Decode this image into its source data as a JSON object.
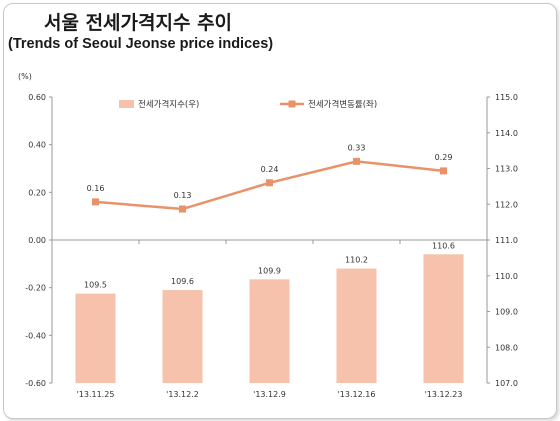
{
  "chart_data": {
    "type": "bar+line",
    "title": "서울 전세가격지수 추이",
    "subtitle": "(Trends of Seoul Jeonse price indices)",
    "left_axis_unit": "(%)",
    "categories": [
      "'13.11.25",
      "'13.12.2",
      "'13.12.9",
      "'13.12.16",
      "'13.12.23"
    ],
    "series": [
      {
        "name": "전세가격지수(우)",
        "type": "bar",
        "axis": "right",
        "values": [
          109.5,
          109.6,
          109.9,
          110.2,
          110.6
        ],
        "value_labels": [
          "109.5",
          "109.6",
          "109.9",
          "110.2",
          "110.6"
        ],
        "color": "#f6c2ab"
      },
      {
        "name": "전세가격변동률(좌)",
        "type": "line",
        "axis": "left",
        "values": [
          0.16,
          0.13,
          0.24,
          0.33,
          0.29
        ],
        "value_labels": [
          "0.16",
          "0.13",
          "0.24",
          "0.33",
          "0.29"
        ],
        "color": "#e9926a"
      }
    ],
    "left_axis": {
      "range": [
        -0.6,
        0.6
      ],
      "ticks": [
        0.6,
        0.4,
        0.2,
        0.0,
        -0.2,
        -0.4,
        -0.6
      ],
      "tick_labels": [
        "0.60",
        "0.40",
        "0.20",
        "0.00",
        "-0.20",
        "-0.40",
        "-0.60"
      ]
    },
    "right_axis": {
      "range": [
        107.0,
        115.0
      ],
      "ticks": [
        115,
        114,
        113,
        112,
        111,
        110,
        109,
        108,
        107
      ],
      "tick_labels": [
        "115.0",
        "114.0",
        "113.0",
        "112.0",
        "111.0",
        "110.0",
        "109.0",
        "108.0",
        "107.0"
      ]
    },
    "grid": false,
    "legend_position": "top"
  }
}
